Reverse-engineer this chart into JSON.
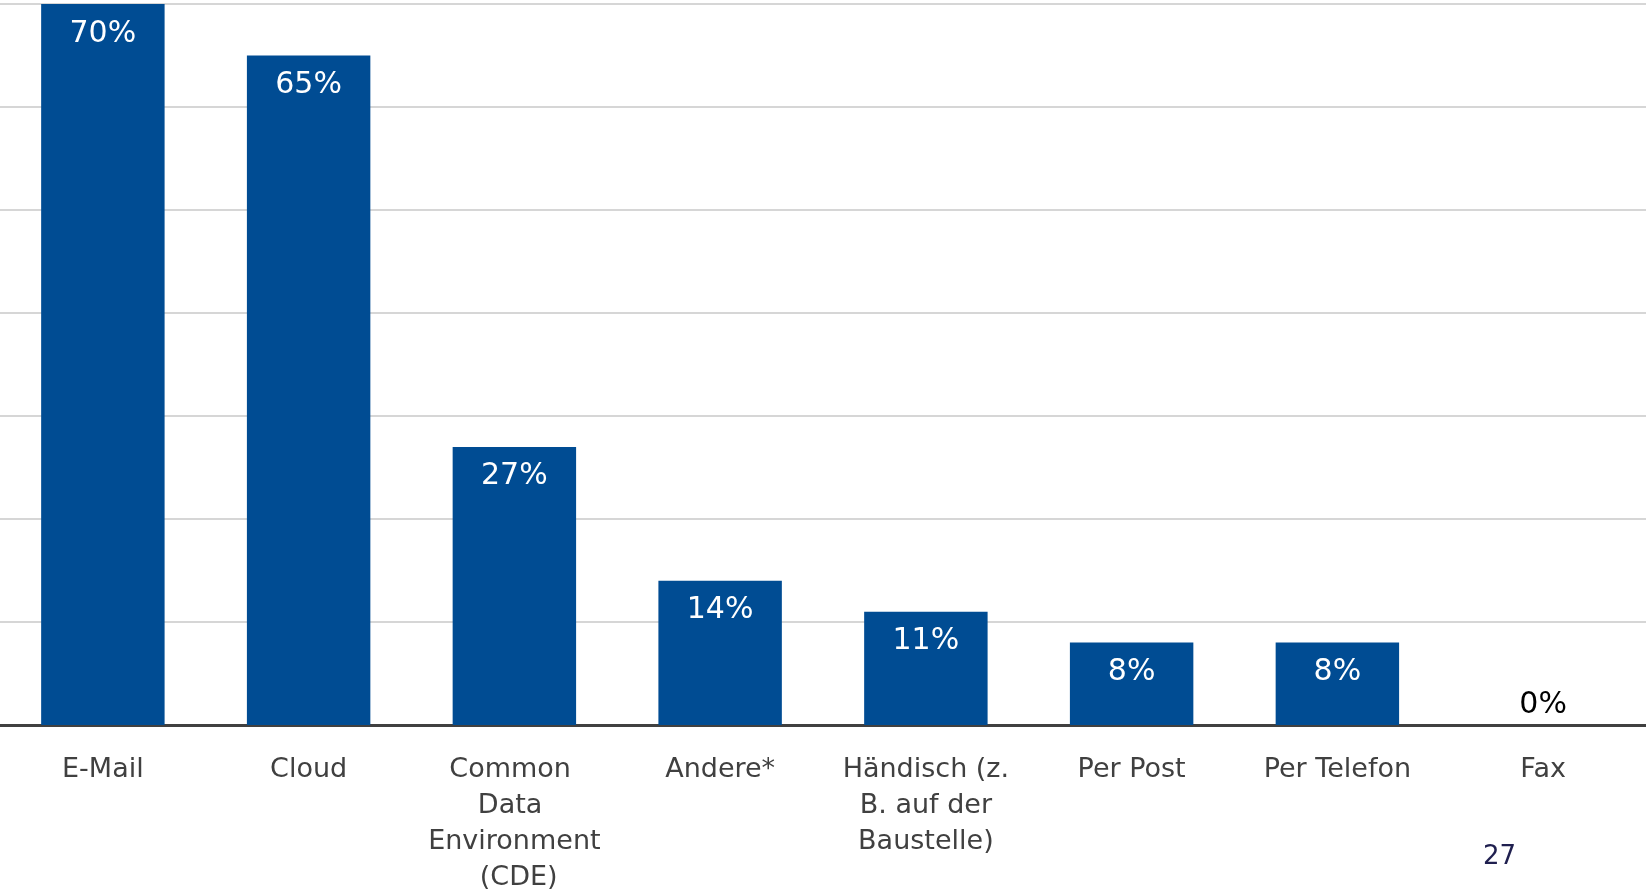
{
  "chart_data": {
    "type": "bar",
    "categories": [
      "E-Mail",
      "Cloud",
      "Common Data Environment (CDE)",
      "Andere*",
      "Händisch (z. B. auf der Baustelle)",
      "Per Post",
      "Per Telefon",
      "Fax"
    ],
    "values": [
      70,
      65,
      27,
      14,
      11,
      8,
      8,
      0
    ],
    "value_labels": [
      "70%",
      "65%",
      "27%",
      "14%",
      "11%",
      "8%",
      "8%",
      "0%"
    ],
    "color": "#004c93",
    "ylim": [
      0,
      70
    ],
    "yticks": [
      0,
      10,
      20,
      30,
      40,
      50,
      60,
      70
    ],
    "grid": "y",
    "tick_labels": "x",
    "annotations": [
      "27"
    ]
  }
}
